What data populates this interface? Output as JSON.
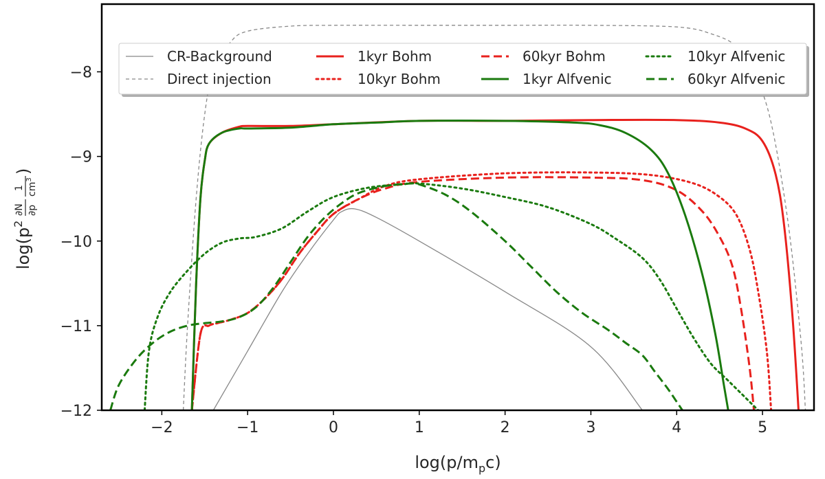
{
  "chart_data": {
    "type": "line",
    "xlabel": "log(p/m",
    "xlabel_sub": "p",
    "xlabel_end": "c)",
    "ylabel_prefix": "log(p",
    "ylabel_sup": "2",
    "ylabel_frac1_num": "∂N",
    "ylabel_frac1_den": "∂p",
    "ylabel_frac2_num": "1",
    "ylabel_frac2_den": "cm",
    "ylabel_frac2_den_sup": "3",
    "ylabel_suffix": ")",
    "xlim": [
      -2.7,
      5.6
    ],
    "ylim": [
      -12,
      -7.2
    ],
    "xticks": [
      -2,
      -1,
      0,
      1,
      2,
      3,
      4,
      5
    ],
    "xtick_labels": [
      "−2",
      "−1",
      "0",
      "1",
      "2",
      "3",
      "4",
      "5"
    ],
    "yticks": [
      -12,
      -11,
      -10,
      -9,
      -8
    ],
    "ytick_labels": [
      "−12",
      "−11",
      "−10",
      "−9",
      "−8"
    ],
    "legend_position": "upper-center",
    "series": [
      {
        "name": "CR-Background",
        "color": "#888888",
        "dash": "solid",
        "thin": true,
        "x": [
          -1.4,
          -1.0,
          -0.6,
          -0.3,
          0.0,
          0.1,
          0.25,
          0.5,
          1.0,
          2.0,
          3.0,
          3.6
        ],
        "y": [
          -12.0,
          -11.3,
          -10.6,
          -10.15,
          -9.75,
          -9.65,
          -9.62,
          -9.72,
          -10.0,
          -10.6,
          -11.25,
          -12.0
        ]
      },
      {
        "name": "Direct injection",
        "color": "#888888",
        "dash": "dashed",
        "thin": true,
        "x": [
          -1.75,
          -1.7,
          -1.6,
          -1.5,
          -1.4,
          -1.2,
          -1.0,
          -0.5,
          0.0,
          1.0,
          2.0,
          3.0,
          4.0,
          4.4,
          4.7,
          4.9,
          5.1,
          5.3,
          5.45,
          5.5
        ],
        "y": [
          -12.0,
          -11.0,
          -9.5,
          -8.5,
          -8.0,
          -7.65,
          -7.52,
          -7.46,
          -7.45,
          -7.45,
          -7.45,
          -7.45,
          -7.47,
          -7.55,
          -7.7,
          -8.0,
          -8.6,
          -9.8,
          -11.2,
          -12.0
        ]
      },
      {
        "name": "1kyr Bohm",
        "color": "#e8211d",
        "dash": "solid",
        "thin": false,
        "x": [
          -1.65,
          -1.6,
          -1.55,
          -1.5,
          -1.45,
          -1.3,
          -1.1,
          -1.0,
          -0.5,
          0.0,
          1.0,
          2.0,
          3.0,
          4.0,
          4.5,
          4.8,
          5.0,
          5.15,
          5.25,
          5.35,
          5.42
        ],
        "y": [
          -12.0,
          -10.5,
          -9.5,
          -9.05,
          -8.85,
          -8.72,
          -8.65,
          -8.64,
          -8.64,
          -8.62,
          -8.58,
          -8.58,
          -8.57,
          -8.57,
          -8.6,
          -8.67,
          -8.82,
          -9.2,
          -9.8,
          -10.9,
          -12.0
        ]
      },
      {
        "name": "10kyr Bohm",
        "color": "#e8211d",
        "dash": "dotted",
        "thin": false,
        "x": [
          -1.65,
          -1.55,
          -1.45,
          -1.35,
          -1.2,
          -1.0,
          -0.8,
          -0.6,
          -0.4,
          -0.2,
          0.0,
          0.3,
          0.6,
          1.0,
          2.0,
          3.0,
          3.7,
          4.2,
          4.5,
          4.7,
          4.85,
          4.95,
          5.05,
          5.1
        ],
        "y": [
          -12.0,
          -11.1,
          -11.0,
          -10.97,
          -10.93,
          -10.85,
          -10.68,
          -10.45,
          -10.15,
          -9.9,
          -9.68,
          -9.5,
          -9.35,
          -9.27,
          -9.2,
          -9.19,
          -9.22,
          -9.32,
          -9.48,
          -9.7,
          -10.1,
          -10.6,
          -11.3,
          -12.0
        ]
      },
      {
        "name": "60kyr Bohm",
        "color": "#e8211d",
        "dash": "dashed",
        "thin": false,
        "x": [
          -1.65,
          -1.55,
          -1.45,
          -1.35,
          -1.2,
          -1.0,
          -0.8,
          -0.6,
          -0.4,
          -0.2,
          0.0,
          0.3,
          0.6,
          1.0,
          2.0,
          3.0,
          3.6,
          4.0,
          4.3,
          4.5,
          4.65,
          4.75,
          4.85,
          4.9
        ],
        "y": [
          -12.0,
          -11.1,
          -11.0,
          -10.97,
          -10.93,
          -10.85,
          -10.68,
          -10.45,
          -10.15,
          -9.9,
          -9.68,
          -9.5,
          -9.38,
          -9.3,
          -9.25,
          -9.25,
          -9.28,
          -9.4,
          -9.65,
          -9.95,
          -10.3,
          -10.8,
          -11.5,
          -12.0
        ]
      },
      {
        "name": "1kyr Alfvenic",
        "color": "#1a7a0e",
        "dash": "solid",
        "thin": false,
        "x": [
          -1.65,
          -1.6,
          -1.55,
          -1.5,
          -1.45,
          -1.3,
          -1.1,
          -1.0,
          -0.5,
          0.0,
          0.5,
          1.0,
          2.0,
          2.8,
          3.1,
          3.4,
          3.7,
          3.9,
          4.1,
          4.3,
          4.45,
          4.55,
          4.6
        ],
        "y": [
          -12.0,
          -10.5,
          -9.5,
          -9.05,
          -8.85,
          -8.72,
          -8.67,
          -8.67,
          -8.66,
          -8.62,
          -8.6,
          -8.58,
          -8.58,
          -8.6,
          -8.63,
          -8.72,
          -8.92,
          -9.2,
          -9.7,
          -10.4,
          -11.1,
          -11.7,
          -12.0
        ]
      },
      {
        "name": "10kyr Alfvenic",
        "color": "#1a7a0e",
        "dash": "dotted",
        "thin": false,
        "x": [
          -2.2,
          -2.15,
          -2.05,
          -1.9,
          -1.7,
          -1.5,
          -1.3,
          -1.1,
          -0.9,
          -0.6,
          -0.3,
          0.0,
          0.4,
          0.8,
          1.0,
          1.5,
          2.0,
          2.5,
          3.0,
          3.3,
          3.6,
          3.8,
          4.0,
          4.2,
          4.4,
          4.6,
          4.8,
          4.95,
          5.05
        ],
        "y": [
          -12.0,
          -11.3,
          -10.9,
          -10.6,
          -10.35,
          -10.15,
          -10.02,
          -9.97,
          -9.95,
          -9.85,
          -9.65,
          -9.48,
          -9.37,
          -9.33,
          -9.32,
          -9.38,
          -9.48,
          -9.6,
          -9.8,
          -9.98,
          -10.2,
          -10.45,
          -10.8,
          -11.15,
          -11.45,
          -11.65,
          -11.85,
          -12.0,
          -12.1
        ]
      },
      {
        "name": "60kyr Alfvenic",
        "color": "#1a7a0e",
        "dash": "dashed",
        "thin": false,
        "x": [
          -2.6,
          -2.5,
          -2.3,
          -2.1,
          -1.9,
          -1.7,
          -1.5,
          -1.3,
          -1.1,
          -0.9,
          -0.7,
          -0.5,
          -0.3,
          -0.1,
          0.1,
          0.3,
          0.6,
          0.9,
          1.0,
          1.3,
          1.6,
          2.0,
          2.3,
          2.6,
          2.9,
          3.2,
          3.4,
          3.6,
          3.75,
          3.9,
          4.0,
          4.1
        ],
        "y": [
          -12.0,
          -11.7,
          -11.4,
          -11.2,
          -11.07,
          -11.0,
          -10.97,
          -10.95,
          -10.9,
          -10.78,
          -10.55,
          -10.25,
          -9.95,
          -9.72,
          -9.55,
          -9.43,
          -9.35,
          -9.32,
          -9.33,
          -9.45,
          -9.65,
          -10.0,
          -10.3,
          -10.6,
          -10.85,
          -11.05,
          -11.2,
          -11.35,
          -11.55,
          -11.75,
          -11.9,
          -12.05
        ]
      }
    ],
    "legend_columns": [
      [
        "CR-Background",
        "Direct injection"
      ],
      [
        "1kyr Bohm",
        "10kyr Bohm"
      ],
      [
        "60kyr Bohm",
        "1kyr Alfvenic"
      ],
      [
        "10kyr Alfvenic",
        "60kyr Alfvenic"
      ]
    ]
  }
}
